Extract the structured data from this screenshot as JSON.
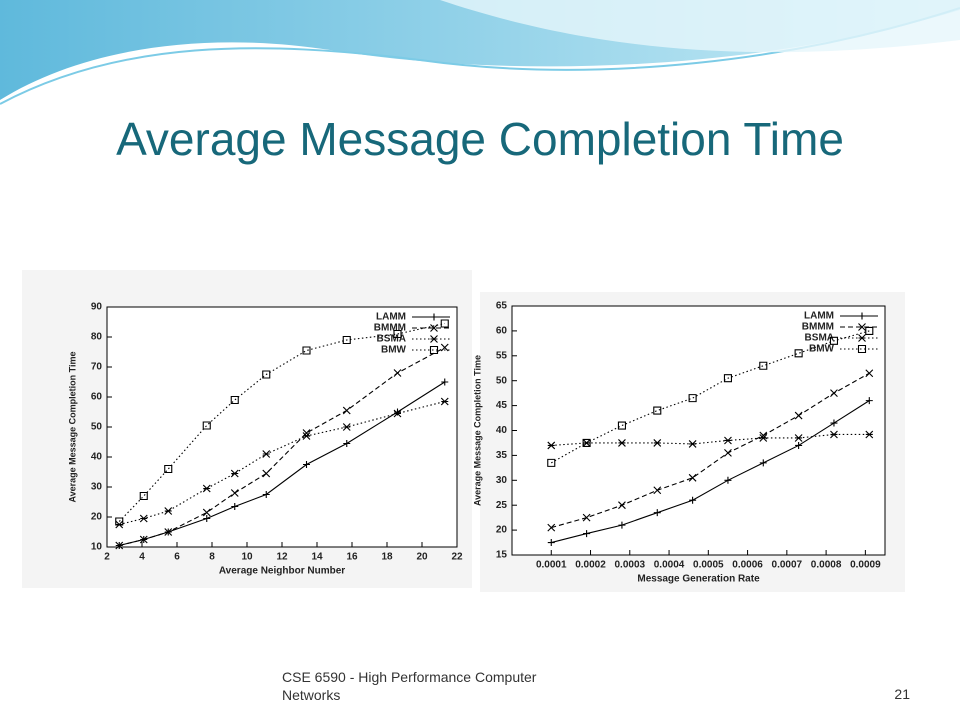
{
  "title": "Average Message Completion Time",
  "footer": "CSE 6590 - High Performance Computer Networks",
  "page_number": "21",
  "chart_data": [
    {
      "type": "line",
      "xlabel": "Average Neighbor Number",
      "ylabel": "Average Message Completion Time",
      "x": [
        2.7,
        4.1,
        5.5,
        7.7,
        9.3,
        11.1,
        13.4,
        15.7,
        18.6,
        21.3
      ],
      "xlim": [
        2,
        22
      ],
      "xticks": [
        2,
        4,
        6,
        8,
        10,
        12,
        14,
        16,
        18,
        20,
        22
      ],
      "ylim": [
        10,
        90
      ],
      "yticks": [
        10,
        20,
        30,
        40,
        50,
        60,
        70,
        80,
        90
      ],
      "legend": "upper right",
      "series": [
        {
          "name": "LAMM",
          "color": "#000000",
          "dash": "solid",
          "marker": "plus",
          "values": [
            10.5,
            12.5,
            15,
            19.5,
            23.5,
            27.5,
            37.5,
            44.5,
            55,
            65
          ]
        },
        {
          "name": "BMMM",
          "color": "#000000",
          "dash": "dashed",
          "marker": "x",
          "values": [
            10.5,
            12.5,
            15,
            21.5,
            28,
            34.5,
            48,
            55.5,
            68,
            76.5
          ]
        },
        {
          "name": "BSMA",
          "color": "#000000",
          "dash": "dotted",
          "marker": "asterisk",
          "values": [
            17.5,
            19.5,
            22,
            29.5,
            34.5,
            41,
            47,
            50,
            54.5,
            58.5
          ]
        },
        {
          "name": "BMW",
          "color": "#000000",
          "dash": "dotted",
          "marker": "square",
          "values": [
            18.5,
            27,
            36,
            50.5,
            59,
            67.5,
            75.5,
            79,
            81,
            84.5
          ]
        }
      ]
    },
    {
      "type": "line",
      "xlabel": "Message Generation Rate",
      "ylabel": "Average Message Completion Time",
      "x": [
        0.0001,
        0.00019,
        0.00028,
        0.00037,
        0.00046,
        0.00055,
        0.00064,
        0.00073,
        0.00082,
        0.00091
      ],
      "xlim": [
        0,
        0.00095
      ],
      "xticks": [
        0.0001,
        0.0002,
        0.0003,
        0.0004,
        0.0005,
        0.0006,
        0.0007,
        0.0008,
        0.0009
      ],
      "ylim": [
        15,
        65
      ],
      "yticks": [
        15,
        20,
        25,
        30,
        35,
        40,
        45,
        50,
        55,
        60,
        65
      ],
      "legend": "upper right",
      "series": [
        {
          "name": "LAMM",
          "color": "#000000",
          "dash": "solid",
          "marker": "plus",
          "values": [
            17.5,
            19.3,
            21,
            23.5,
            26,
            30,
            33.5,
            37,
            41.5,
            46
          ]
        },
        {
          "name": "BMMM",
          "color": "#000000",
          "dash": "dashed",
          "marker": "x",
          "values": [
            20.5,
            22.5,
            25,
            28,
            30.5,
            35.5,
            39,
            43,
            47.5,
            51.5
          ]
        },
        {
          "name": "BSMA",
          "color": "#000000",
          "dash": "dotted",
          "marker": "asterisk",
          "values": [
            37,
            37.5,
            37.5,
            37.5,
            37.3,
            38,
            38.5,
            38.5,
            39.2,
            39.2
          ]
        },
        {
          "name": "BMW",
          "color": "#000000",
          "dash": "dotted",
          "marker": "square",
          "values": [
            33.5,
            37.5,
            41,
            44,
            46.5,
            50.5,
            53,
            55.5,
            58,
            60
          ]
        }
      ]
    }
  ]
}
